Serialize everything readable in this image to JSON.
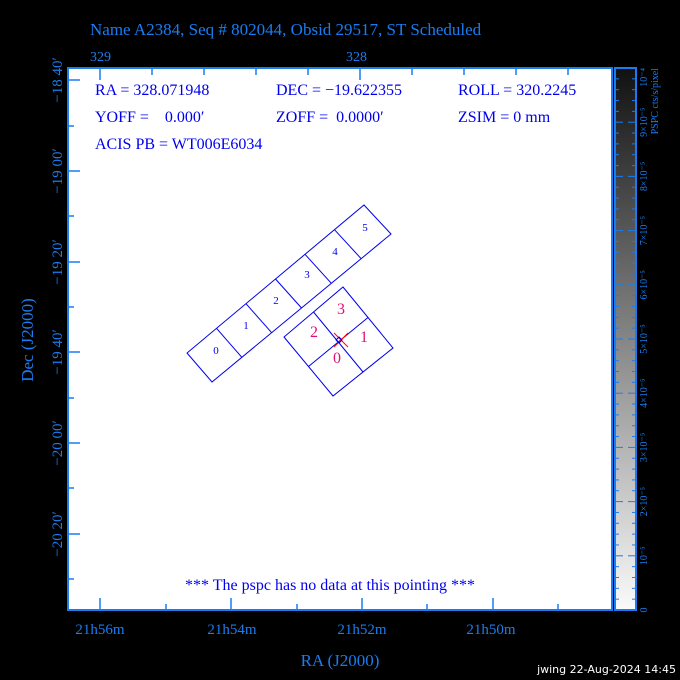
{
  "title": "Name A2384, Seq # 802044, Obsid 29517, ST Scheduled",
  "info": {
    "ra": "RA = 328.071948",
    "dec": "DEC = −19.622355",
    "roll": "ROLL = 320.2245",
    "yoff": "YOFF =    0.000′",
    "zoff": "ZOFF =  0.0000′",
    "zsim": "ZSIM = 0 mm",
    "acis_pb": "ACIS PB = WT006E6034"
  },
  "message": "*** The pspc has no data at this pointing ***",
  "top_axis_labels": [
    "329",
    "328"
  ],
  "bottom_axis_labels": [
    "21h56m",
    "21h54m",
    "21h52m",
    "21h50m"
  ],
  "x_axis_title": "RA (J2000)",
  "left_axis_labels": [
    "−18 40′",
    "−19 00′",
    "−19 20′",
    "−19 40′",
    "−20 00′",
    "−20 20′"
  ],
  "y_axis_title": "Dec (J2000)",
  "colorbar": {
    "title": "PSPC cts/s/pixel",
    "labels": [
      "0",
      "10⁻⁵",
      "2×10⁻⁵",
      "3×10⁻⁵",
      "4×10⁻⁵",
      "5×10⁻⁵",
      "6×10⁻⁵",
      "7×10⁻⁵",
      "8×10⁻⁵",
      "9×10⁻⁵",
      "10⁻⁴"
    ],
    "range": [
      0,
      0.0001
    ]
  },
  "acis_s_chips": [
    "0",
    "1",
    "2",
    "3",
    "4",
    "5"
  ],
  "acis_i_chips": [
    "0",
    "1",
    "2",
    "3"
  ],
  "footer": "jwing 22-Aug-2024 14:45",
  "colors": {
    "axis": "#1a7cf0",
    "text": "#0000ee",
    "acis_i_label": "#e0107a",
    "aimpoint": "#ff0000"
  }
}
